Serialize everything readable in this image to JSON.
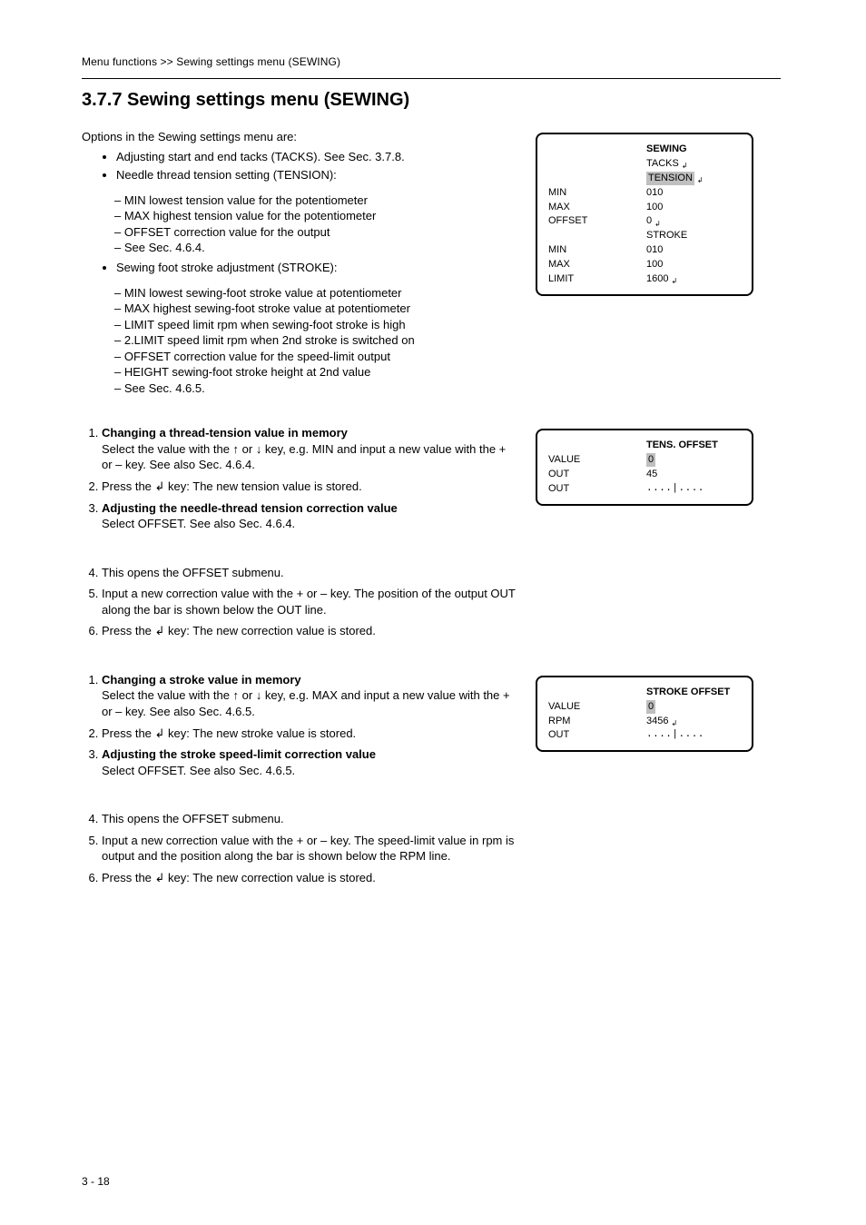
{
  "breadcrumb": "Menu functions >> Sewing settings menu (SEWING)",
  "heading": "3.7.7 Sewing settings menu (SEWING)",
  "section1": {
    "intro": "Options in the Sewing settings menu are:",
    "bullets": [
      "Adjusting start and end tacks  (TACKS). See Sec. 3.7.8.",
      "Needle thread tension setting  (TENSION):"
    ],
    "sub_bullets": [
      "MIN          lowest tension value for the potentiometer",
      "MAX         highest tension value for the potentiometer",
      "OFFSET   correction value for the output",
      "See Sec. 4.6.4."
    ],
    "bullet3": "Sewing foot stroke adjustment  (STROKE):",
    "sub_bullets3": [
      "MIN                lowest sewing-foot stroke value at potentiometer",
      "MAX               highest sewing-foot stroke value at potentiometer",
      "LIMIT            speed limit rpm when sewing-foot stroke is high",
      "2.LIMIT        speed limit rpm when 2nd stroke is switched on",
      "OFFSET        correction value for the speed-limit output",
      "HEIGHT        sewing-foot stroke height at 2nd value",
      "See Sec. 4.6.5."
    ]
  },
  "screen1": {
    "title": "SEWING",
    "rows": [
      {
        "label": "",
        "value": "TACKS",
        "highlight": false,
        "icon": true
      },
      {
        "label": "",
        "value": "TENSION",
        "highlight": true,
        "icon": true
      },
      {
        "label": "MIN",
        "value": "010"
      },
      {
        "label": "MAX",
        "value": "100"
      },
      {
        "label": "OFFSET",
        "value": "0",
        "icon": true
      },
      {
        "label": "",
        "value": "STROKE"
      },
      {
        "label": "MIN",
        "value": "010"
      },
      {
        "label": "MAX",
        "value": "100"
      },
      {
        "label": "LIMIT",
        "value": "1600",
        "icon": true
      }
    ]
  },
  "section2": {
    "step1_title": "Changing a thread-tension value in memory",
    "step1": "Select the value with the ↑ or ↓ key, e.g.  MIN  and input a new value with the +  or  –  key. See also Sec. 4.6.4.",
    "step2": "Press the  ↲  key: The new tension value is stored.",
    "step3_title": "Adjusting the needle-thread tension correction value",
    "step3_body": "Select  OFFSET. See also Sec. 4.6.4."
  },
  "screen2": {
    "title": "TENS. OFFSET",
    "rows": [
      {
        "label": "VALUE",
        "value": "0",
        "highlight": true
      },
      {
        "label": "OUT",
        "value": "45"
      },
      {
        "label": "OUT",
        "value": "....|....",
        "mono": true
      }
    ]
  },
  "section3": {
    "step4": "This opens the  OFFSET  submenu.",
    "step5": "Input a new correction value with the + or  –  key. The position of the output  OUT  along the bar is shown below the  OUT  line.",
    "step6": "Press the  ↲  key: The new correction value is stored."
  },
  "section4": {
    "step_a_title": "Changing a stroke value in memory",
    "step_a": "Select the value with the ↑ or ↓ key, e.g.  MAX  and input a new value with the +  or  –  key. See also Sec. 4.6.5.",
    "step_b": "Press the  ↲  key: The new stroke value is stored.",
    "step_c_title": "Adjusting the stroke speed-limit correction value",
    "step_c_body": "Select  OFFSET. See also Sec. 4.6.5."
  },
  "screen3": {
    "title": "STROKE OFFSET",
    "rows": [
      {
        "label": "VALUE",
        "value": "0",
        "highlight": true
      },
      {
        "label": "RPM",
        "value": "3456",
        "icon": true
      },
      {
        "label": "OUT",
        "value": "....|....",
        "mono": true
      }
    ]
  },
  "section5": {
    "step4": "This opens the  OFFSET  submenu.",
    "step5": "Input a new correction value with the + or – key. The speed-limit value in rpm is output and the position along the bar is shown below the  RPM  line.",
    "step6": "Press the  ↲  key: The new correction value is stored."
  },
  "footer_left": "3 - 18",
  "footer_right": ""
}
